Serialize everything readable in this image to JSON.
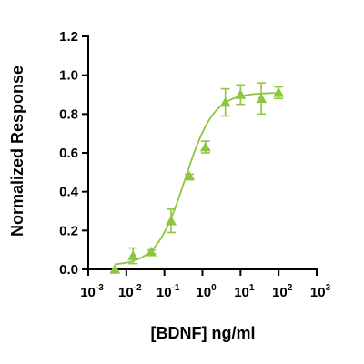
{
  "chart_data": {
    "type": "scatter",
    "xlabel": "[BDNF] ng/ml",
    "ylabel": "Normalized Response",
    "xscale": "log",
    "xlim": [
      0.001,
      1000
    ],
    "ylim": [
      0,
      1.2
    ],
    "x_ticks": [
      {
        "base": "10",
        "exp": "-3"
      },
      {
        "base": "10",
        "exp": "-2"
      },
      {
        "base": "10",
        "exp": "-1"
      },
      {
        "base": "10",
        "exp": "0"
      },
      {
        "base": "10",
        "exp": "1"
      },
      {
        "base": "10",
        "exp": "2"
      },
      {
        "base": "10",
        "exp": "3"
      }
    ],
    "y_ticks": [
      "0.0",
      "0.2",
      "0.4",
      "0.6",
      "0.8",
      "1.0",
      "1.2"
    ],
    "color": "#8dc63f",
    "marker": "triangle",
    "series": [
      {
        "x": [
          0.005,
          0.015,
          0.045,
          0.15,
          0.45,
          1.2,
          4,
          10,
          35,
          100
        ],
        "y": [
          0.0,
          0.07,
          0.09,
          0.25,
          0.48,
          0.63,
          0.86,
          0.9,
          0.88,
          0.91
        ],
        "error": [
          0.0,
          0.04,
          0.01,
          0.06,
          0.01,
          0.03,
          0.07,
          0.05,
          0.08,
          0.03
        ]
      }
    ],
    "fit": {
      "type": "4PL",
      "bottom": 0.02,
      "top": 0.91,
      "ec50": 0.35,
      "hill": 1.15
    }
  }
}
